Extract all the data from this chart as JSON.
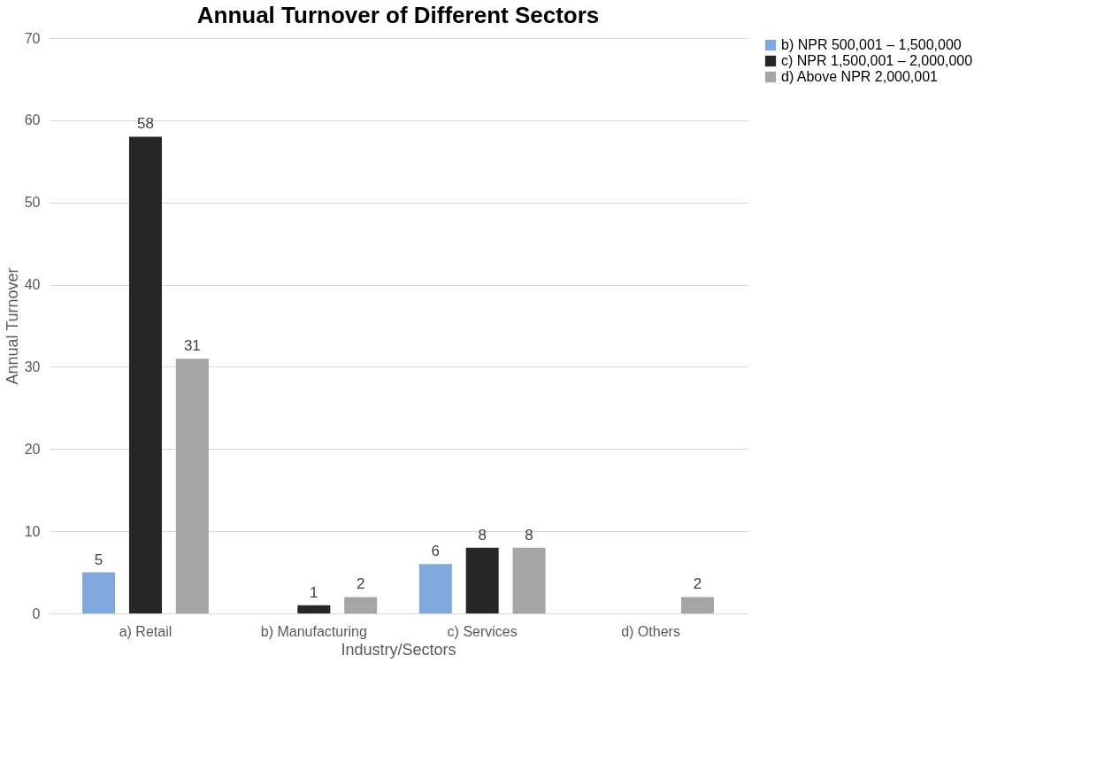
{
  "chart_data": {
    "type": "bar",
    "title": "Annual Turnover of Different Sectors",
    "xlabel": "Industry/Sectors",
    "ylabel": "Annual Turnover",
    "categories": [
      "a) Retail",
      "b) Manufacturing",
      "c) Services",
      "d) Others"
    ],
    "series": [
      {
        "name": "b) NPR 500,001 – 1,500,000",
        "color": "#7fa9dc",
        "values": [
          5,
          null,
          6,
          null
        ]
      },
      {
        "name": "c) NPR 1,500,001 – 2,000,000",
        "color": "#262626",
        "values": [
          58,
          1,
          8,
          null
        ]
      },
      {
        "name": "d) Above NPR 2,000,001",
        "color": "#a5a5a5",
        "values": [
          31,
          2,
          8,
          2
        ]
      }
    ],
    "ylim": [
      0,
      70
    ],
    "yticks": [
      0,
      10,
      20,
      30,
      40,
      50,
      60,
      70
    ],
    "grid": "y",
    "legend": "right",
    "data_labels": true
  }
}
